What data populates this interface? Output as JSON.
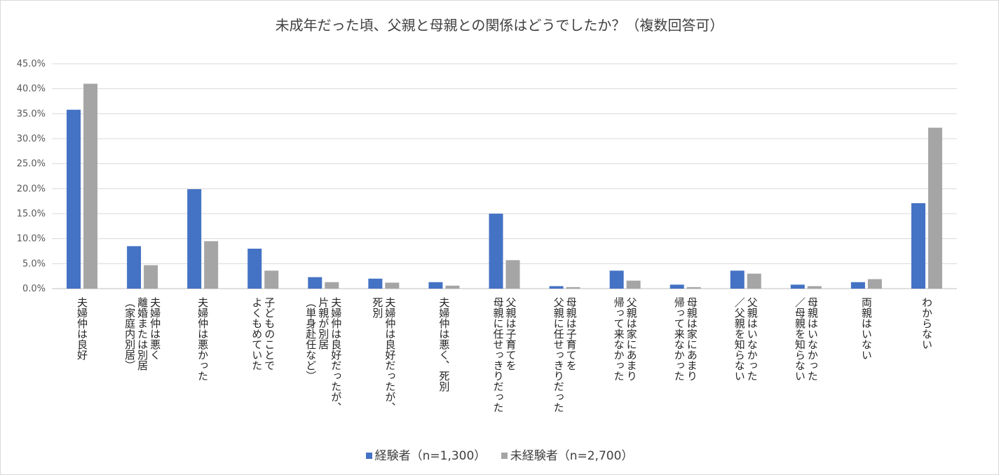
{
  "chart_data": {
    "type": "bar",
    "title": "未成年だった頃、父親と母親との関係はどうでしたか？（複数回答可）",
    "categories": [
      "夫婦仲は良好",
      "夫婦仲は悪く\n離婚または別居\n（家庭内別居）",
      "夫婦仲は悪かった",
      "子どものことで\nよくもめていた",
      "夫婦仲は良好だったが、\n片親が別居\n（単身赴任など）",
      "夫婦仲は良好だったが、\n死別",
      "夫婦仲は悪く、死別",
      "父親は子育てを\n母親に任せっきりだった",
      "母親は子育てを\n父親に任せっきりだった",
      "父親は家にあまり\n帰って来なかった",
      "母親は家にあまり\n帰って来なかった",
      "父親はいなかった\n／父親を知らない",
      "母親はいなかった\n／母親を知らない",
      "両親はいない",
      "わからない"
    ],
    "series": [
      {
        "name": "経験者（n=1,300）",
        "color": "#4472c4",
        "values": [
          35.8,
          8.5,
          19.9,
          8.0,
          2.3,
          2.0,
          1.3,
          15.0,
          0.5,
          3.6,
          0.8,
          3.6,
          0.8,
          1.3,
          17.1
        ]
      },
      {
        "name": "未経験者（n=2,700）",
        "color": "#a5a5a5",
        "values": [
          41.0,
          4.7,
          9.5,
          3.6,
          1.3,
          1.2,
          0.6,
          5.7,
          0.3,
          1.6,
          0.3,
          3.0,
          0.5,
          1.9,
          32.2
        ]
      }
    ],
    "yticks": [
      "0.0%",
      "5.0%",
      "10.0%",
      "15.0%",
      "20.0%",
      "25.0%",
      "30.0%",
      "35.0%",
      "40.0%",
      "45.0%"
    ],
    "ylim": [
      0,
      45
    ],
    "grid": true,
    "legend_position": "bottom"
  }
}
